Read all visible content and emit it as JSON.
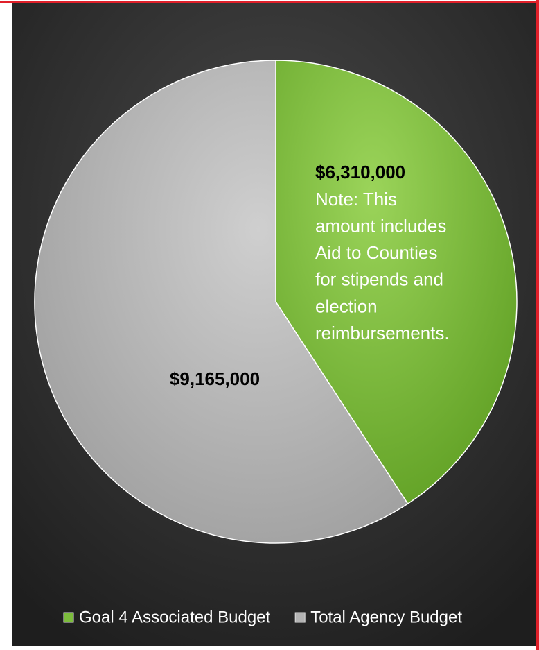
{
  "chart_data": {
    "type": "pie",
    "categories": [
      "Goal 4 Associated Budget",
      "Total Agency Budget"
    ],
    "values": [
      6310000,
      9165000
    ],
    "value_labels": [
      "$6,310,000",
      "$9,165,000"
    ],
    "colors": [
      "#7cbc3c",
      "#b4b4b4"
    ],
    "annotation": [
      "Note:  This",
      "amount includes",
      "Aid to Counties",
      "for  stipends and",
      "election",
      "reimbursements."
    ],
    "legend": "bottom"
  }
}
